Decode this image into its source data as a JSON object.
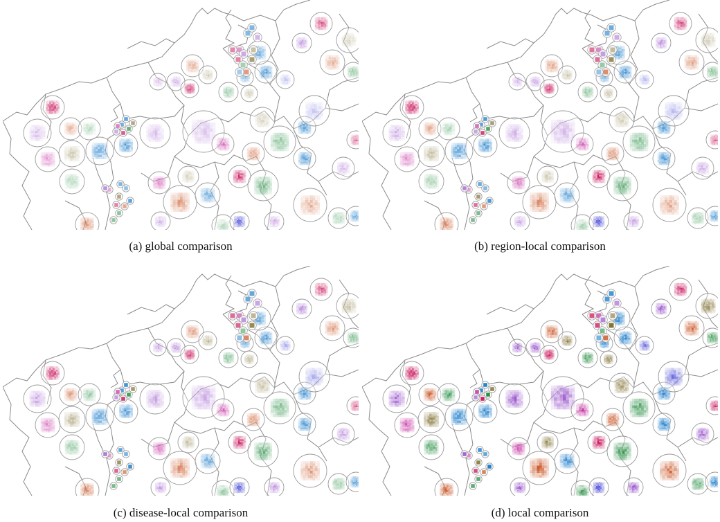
{
  "figure": {
    "panels": [
      {
        "id": "a",
        "caption": "(a)  global comparison",
        "mode": "global"
      },
      {
        "id": "b",
        "caption": "(b)  region-local comparison",
        "mode": "region-local"
      },
      {
        "id": "c",
        "caption": "(c)  disease-local comparison",
        "mode": "disease-local"
      },
      {
        "id": "d",
        "caption": "(d)  local comparison",
        "mode": "local"
      }
    ]
  },
  "colors": {
    "crimson": "#c8145a",
    "magenta": "#c42ca0",
    "purple": "#8a3bc4",
    "orange": "#c8501e",
    "olive": "#7a6a28",
    "green": "#1e8a3c",
    "blue": "#1478c8",
    "violet": "#5050d8",
    "border": "#8a8a8a",
    "ring": "#9a9a9a"
  }
}
